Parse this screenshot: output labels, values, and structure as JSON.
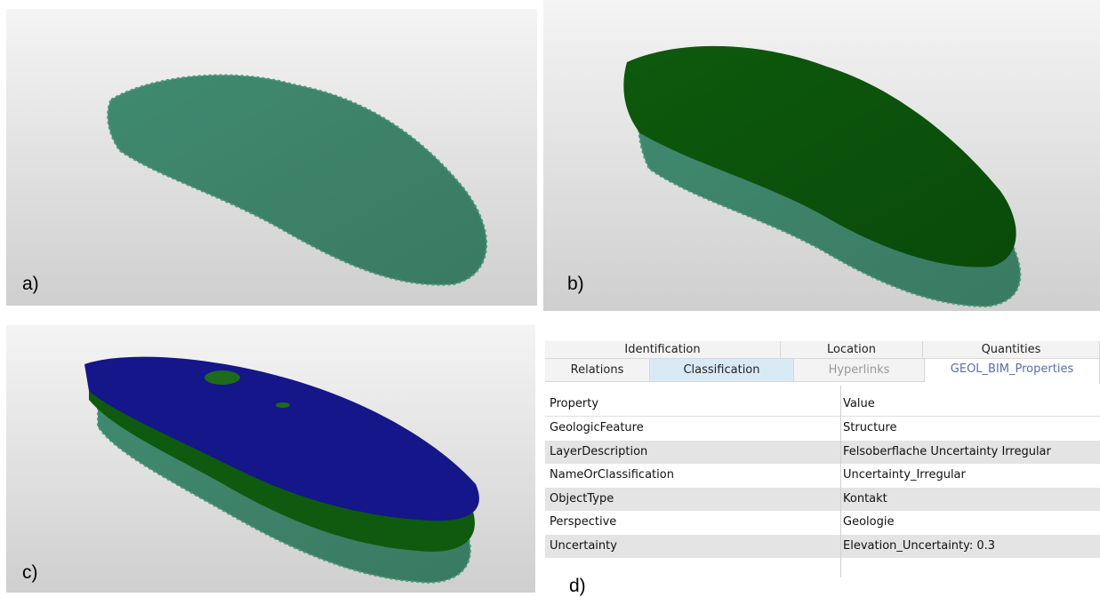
{
  "panels": [
    {
      "label": "a)"
    },
    {
      "label": "b)"
    },
    {
      "label": "c)"
    },
    {
      "label": "d)"
    }
  ],
  "tabs": {
    "row1": [
      "Identification",
      "Location",
      "Quantities"
    ],
    "row2": [
      "Relations",
      "Classification",
      "Hyperlinks",
      "GEOL_BIM_Properties"
    ]
  },
  "table": {
    "header": [
      "Property",
      "Value"
    ],
    "rows": [
      [
        "GeologicFeature",
        "Structure"
      ],
      [
        "LayerDescription",
        "Felsoberflache Uncertainty Irregular"
      ],
      [
        "NameOrClassification",
        "Uncertainty_Irregular"
      ],
      [
        "ObjectType",
        "Kontakt"
      ],
      [
        "Perspective",
        "Geologie"
      ],
      [
        "Uncertainty",
        "Elevation_Uncertainty: 0.3"
      ]
    ]
  }
}
